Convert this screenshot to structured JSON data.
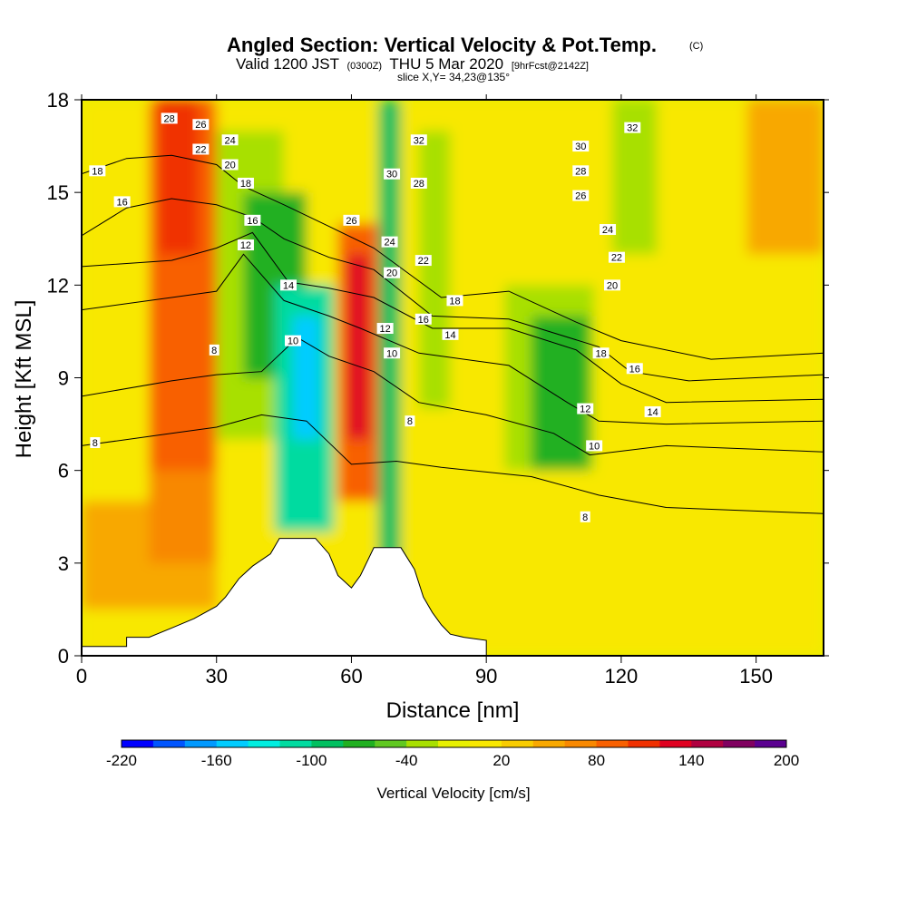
{
  "header": {
    "title": "Angled Section: Vertical Velocity & Pot.Temp.",
    "title_mark": "(C)",
    "valid_a": "Valid 1200 JST",
    "valid_b": "(0300Z)",
    "valid_c": "THU 5 Mar 2020",
    "valid_d": "[9hrFcst@2142Z]",
    "slice": "slice X,Y= 34,23@135°"
  },
  "chart_data": {
    "type": "heatmap",
    "xlabel": "Distance [nm]",
    "ylabel": "Height [Kft MSL]",
    "xlim": [
      0,
      165
    ],
    "ylim": [
      0,
      18
    ],
    "x_ticks": [
      0,
      30,
      60,
      90,
      120,
      150
    ],
    "y_ticks": [
      0,
      3,
      6,
      9,
      12,
      15,
      18
    ],
    "x_tick_labels": [
      "0",
      "30",
      "60",
      "90",
      "120",
      "150"
    ],
    "y_tick_labels": [
      "0",
      "3",
      "6",
      "9",
      "12",
      "15",
      "18"
    ],
    "colorbar": {
      "label": "Vertical Velocity [cm/s]",
      "min": -220,
      "max": 200,
      "step": 20,
      "tick_labels": [
        "-220",
        "-160",
        "-100",
        "-40",
        "20",
        "80",
        "140",
        "200"
      ],
      "tick_values": [
        -220,
        -160,
        -100,
        -40,
        20,
        80,
        140,
        200
      ],
      "colors": [
        "#0000ff",
        "#0055ff",
        "#0099ff",
        "#00ccff",
        "#00eee0",
        "#00dba0",
        "#00c060",
        "#20b020",
        "#60c820",
        "#a8e000",
        "#e8f000",
        "#f8e800",
        "#f8cc00",
        "#f8a800",
        "#f88800",
        "#f86000",
        "#f03000",
        "#e00020",
        "#b00040",
        "#800060",
        "#5a0090"
      ]
    },
    "shaded_field": "vertical velocity (cm/s)",
    "cells": [
      {
        "x": [
          0,
          165
        ],
        "y": [
          0,
          18
        ],
        "w": 10
      },
      {
        "x": [
          0,
          30
        ],
        "y": [
          1.5,
          5
        ],
        "w": 40
      },
      {
        "x": [
          15,
          30
        ],
        "y": [
          3,
          16
        ],
        "w": 60
      },
      {
        "x": [
          15,
          30
        ],
        "y": [
          6,
          18
        ],
        "w": 80
      },
      {
        "x": [
          17,
          26
        ],
        "y": [
          13,
          18
        ],
        "w": 100
      },
      {
        "x": [
          30,
          45
        ],
        "y": [
          7,
          17
        ],
        "w": -40
      },
      {
        "x": [
          36,
          50
        ],
        "y": [
          9,
          15
        ],
        "w": -80
      },
      {
        "x": [
          43,
          56
        ],
        "y": [
          4,
          12
        ],
        "w": -120
      },
      {
        "x": [
          47,
          53
        ],
        "y": [
          7,
          11
        ],
        "w": -160
      },
      {
        "x": [
          57,
          66
        ],
        "y": [
          5,
          14
        ],
        "w": 80
      },
      {
        "x": [
          59,
          64
        ],
        "y": [
          7,
          13
        ],
        "w": 120
      },
      {
        "x": [
          66,
          71
        ],
        "y": [
          3,
          18
        ],
        "w": -100
      },
      {
        "x": [
          75,
          82
        ],
        "y": [
          8,
          17
        ],
        "w": -40
      },
      {
        "x": [
          94,
          114
        ],
        "y": [
          4,
          12
        ],
        "w": -40
      },
      {
        "x": [
          100,
          113
        ],
        "y": [
          6,
          11
        ],
        "w": -80
      },
      {
        "x": [
          118,
          128
        ],
        "y": [
          13,
          18
        ],
        "w": -40
      },
      {
        "x": [
          148,
          165
        ],
        "y": [
          13,
          18
        ],
        "w": 40
      },
      {
        "x": [
          85,
          165
        ],
        "y": [
          0,
          6
        ],
        "w": 0
      }
    ],
    "terrain": [
      [
        0,
        0.3
      ],
      [
        10,
        0.3
      ],
      [
        10,
        0.6
      ],
      [
        15,
        0.6
      ],
      [
        20,
        0.9
      ],
      [
        25,
        1.2
      ],
      [
        30,
        1.6
      ],
      [
        32,
        1.9
      ],
      [
        35,
        2.5
      ],
      [
        38,
        2.9
      ],
      [
        42,
        3.3
      ],
      [
        44,
        3.8
      ],
      [
        52,
        3.8
      ],
      [
        55,
        3.3
      ],
      [
        57,
        2.6
      ],
      [
        60,
        2.2
      ],
      [
        62,
        2.6
      ],
      [
        65,
        3.5
      ],
      [
        71,
        3.5
      ],
      [
        74,
        2.8
      ],
      [
        76,
        1.9
      ],
      [
        78,
        1.4
      ],
      [
        80,
        1.0
      ],
      [
        82,
        0.7
      ],
      [
        85,
        0.6
      ],
      [
        90,
        0.5
      ],
      [
        90,
        0
      ]
    ],
    "series": [
      {
        "name": "8",
        "values": [
          [
            0,
            6.8
          ],
          [
            20,
            7.2
          ],
          [
            30,
            7.4
          ],
          [
            40,
            7.8
          ],
          [
            50,
            7.6
          ],
          [
            60,
            6.2
          ],
          [
            70,
            6.3
          ],
          [
            80,
            6.1
          ],
          [
            100,
            5.8
          ],
          [
            115,
            5.2
          ],
          [
            130,
            4.8
          ],
          [
            165,
            4.6
          ]
        ]
      },
      {
        "name": "10",
        "values": [
          [
            0,
            8.4
          ],
          [
            20,
            8.9
          ],
          [
            30,
            9.1
          ],
          [
            40,
            9.2
          ],
          [
            48,
            10.3
          ],
          [
            55,
            9.7
          ],
          [
            65,
            9.2
          ],
          [
            75,
            8.2
          ],
          [
            90,
            7.8
          ],
          [
            105,
            7.2
          ],
          [
            113,
            6.5
          ],
          [
            130,
            6.8
          ],
          [
            165,
            6.6
          ]
        ]
      },
      {
        "name": "12",
        "values": [
          [
            0,
            11.2
          ],
          [
            20,
            11.6
          ],
          [
            30,
            11.8
          ],
          [
            36,
            13.0
          ],
          [
            45,
            11.5
          ],
          [
            55,
            11.0
          ],
          [
            62,
            10.6
          ],
          [
            75,
            9.8
          ],
          [
            95,
            9.4
          ],
          [
            108,
            8.2
          ],
          [
            115,
            7.6
          ],
          [
            130,
            7.5
          ],
          [
            165,
            7.6
          ]
        ]
      },
      {
        "name": "14",
        "values": [
          [
            0,
            12.6
          ],
          [
            20,
            12.8
          ],
          [
            30,
            13.2
          ],
          [
            38,
            13.7
          ],
          [
            46,
            12.1
          ],
          [
            55,
            11.9
          ],
          [
            65,
            11.6
          ],
          [
            78,
            10.6
          ],
          [
            95,
            10.6
          ],
          [
            110,
            9.9
          ],
          [
            120,
            8.8
          ],
          [
            130,
            8.2
          ],
          [
            165,
            8.3
          ]
        ]
      },
      {
        "name": "16",
        "values": [
          [
            0,
            13.6
          ],
          [
            10,
            14.5
          ],
          [
            20,
            14.8
          ],
          [
            30,
            14.6
          ],
          [
            38,
            14.2
          ],
          [
            45,
            13.5
          ],
          [
            55,
            12.9
          ],
          [
            65,
            12.5
          ],
          [
            78,
            11.0
          ],
          [
            95,
            10.9
          ],
          [
            115,
            10.0
          ],
          [
            122,
            9.2
          ],
          [
            135,
            8.9
          ],
          [
            165,
            9.1
          ]
        ]
      },
      {
        "name": "18",
        "values": [
          [
            0,
            15.6
          ],
          [
            10,
            16.1
          ],
          [
            20,
            16.2
          ],
          [
            30,
            15.9
          ],
          [
            36,
            15.2
          ],
          [
            45,
            14.6
          ],
          [
            55,
            13.9
          ],
          [
            65,
            13.2
          ],
          [
            80,
            11.6
          ],
          [
            95,
            11.8
          ],
          [
            110,
            10.8
          ],
          [
            120,
            10.2
          ],
          [
            140,
            9.6
          ],
          [
            165,
            9.8
          ]
        ]
      }
    ],
    "contour_labels": [
      {
        "text": "28",
        "x": 19.5,
        "y": 17.4
      },
      {
        "text": "26",
        "x": 26.5,
        "y": 17.2
      },
      {
        "text": "24",
        "x": 33,
        "y": 16.7
      },
      {
        "text": "22",
        "x": 26.5,
        "y": 16.4
      },
      {
        "text": "20",
        "x": 33,
        "y": 15.9
      },
      {
        "text": "18",
        "x": 3.5,
        "y": 15.7
      },
      {
        "text": "16",
        "x": 9,
        "y": 14.7
      },
      {
        "text": "18",
        "x": 36.5,
        "y": 15.3
      },
      {
        "text": "16",
        "x": 38,
        "y": 14.1
      },
      {
        "text": "12",
        "x": 36.5,
        "y": 13.3
      },
      {
        "text": "14",
        "x": 46,
        "y": 12.0
      },
      {
        "text": "10",
        "x": 47,
        "y": 10.2
      },
      {
        "text": "8",
        "x": 29.5,
        "y": 9.9
      },
      {
        "text": "8",
        "x": 3,
        "y": 6.9
      },
      {
        "text": "32",
        "x": 75,
        "y": 16.7
      },
      {
        "text": "30",
        "x": 69,
        "y": 15.6
      },
      {
        "text": "28",
        "x": 75,
        "y": 15.3
      },
      {
        "text": "26",
        "x": 60,
        "y": 14.1
      },
      {
        "text": "24",
        "x": 68.5,
        "y": 13.4
      },
      {
        "text": "22",
        "x": 76,
        "y": 12.8
      },
      {
        "text": "20",
        "x": 69,
        "y": 12.4
      },
      {
        "text": "18",
        "x": 83,
        "y": 11.5
      },
      {
        "text": "16",
        "x": 76,
        "y": 10.9
      },
      {
        "text": "14",
        "x": 82,
        "y": 10.4
      },
      {
        "text": "12",
        "x": 67.5,
        "y": 10.6
      },
      {
        "text": "10",
        "x": 69,
        "y": 9.8
      },
      {
        "text": "8",
        "x": 73,
        "y": 7.6
      },
      {
        "text": "32",
        "x": 122.5,
        "y": 17.1
      },
      {
        "text": "30",
        "x": 111,
        "y": 16.5
      },
      {
        "text": "28",
        "x": 111,
        "y": 15.7
      },
      {
        "text": "26",
        "x": 111,
        "y": 14.9
      },
      {
        "text": "24",
        "x": 117,
        "y": 13.8
      },
      {
        "text": "22",
        "x": 119,
        "y": 12.9
      },
      {
        "text": "20",
        "x": 118,
        "y": 12.0
      },
      {
        "text": "18",
        "x": 115.5,
        "y": 9.8
      },
      {
        "text": "16",
        "x": 123,
        "y": 9.3
      },
      {
        "text": "14",
        "x": 127,
        "y": 7.9
      },
      {
        "text": "12",
        "x": 112,
        "y": 8.0
      },
      {
        "text": "10",
        "x": 114,
        "y": 6.8
      },
      {
        "text": "8",
        "x": 112,
        "y": 4.5
      }
    ]
  }
}
